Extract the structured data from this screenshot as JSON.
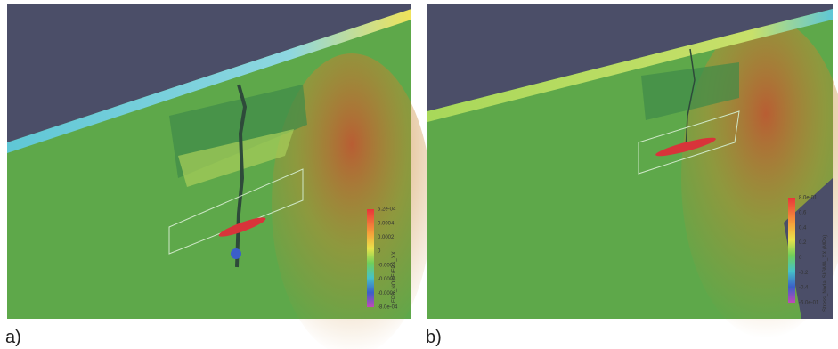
{
  "panels": [
    {
      "label": "a)",
      "colorbar": {
        "title": "EPS_NODE/EPS_XX",
        "ticks": [
          "6.2e-04",
          "0.0004",
          "0.0002",
          "0",
          "-0.0002",
          "-0.0004",
          "-0.0006",
          "-8.0e-04"
        ]
      }
    },
    {
      "label": "b)",
      "colorbar": {
        "title": "Stress_Nodal SIGMA_XX (MPa)",
        "ticks": [
          "8.0e-01",
          "0.6",
          "0.4",
          "0.2",
          "0",
          "-0.2",
          "-0.4",
          "-6.0e-01"
        ]
      }
    }
  ]
}
